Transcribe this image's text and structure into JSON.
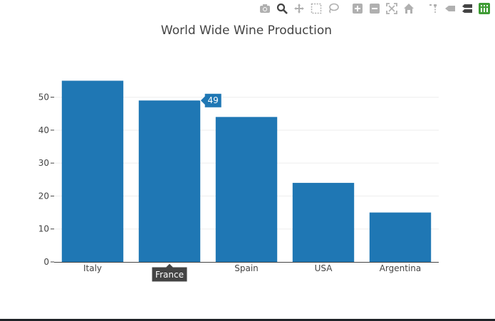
{
  "toolbar": {
    "buttons": [
      {
        "name": "camera-icon",
        "active": false
      },
      {
        "name": "zoom-icon",
        "active": true
      },
      {
        "name": "pan-icon",
        "active": false
      },
      {
        "name": "box-select-icon",
        "active": false
      },
      {
        "name": "lasso-select-icon",
        "active": false
      },
      {
        "name": "zoom-in-icon",
        "active": false
      },
      {
        "name": "zoom-out-icon",
        "active": false
      },
      {
        "name": "autoscale-icon",
        "active": false
      },
      {
        "name": "reset-axes-icon",
        "active": false
      },
      {
        "name": "spike-lines-icon",
        "active": false
      },
      {
        "name": "hover-closest-icon",
        "active": false
      },
      {
        "name": "hover-compare-icon",
        "active": false
      },
      {
        "name": "plotly-logo-icon",
        "active": false
      }
    ]
  },
  "chart_data": {
    "type": "bar",
    "title": "World Wide Wine Production",
    "categories": [
      "Italy",
      "France",
      "Spain",
      "USA",
      "Argentina"
    ],
    "values": [
      55,
      49,
      44,
      24,
      15
    ],
    "ylim": [
      0,
      57.9
    ],
    "yticks": [
      0,
      10,
      20,
      30,
      40,
      50
    ],
    "grid": true,
    "bar_color": "#1f77b4",
    "hover": {
      "category": "France",
      "value": "49",
      "x_label": "France"
    }
  }
}
